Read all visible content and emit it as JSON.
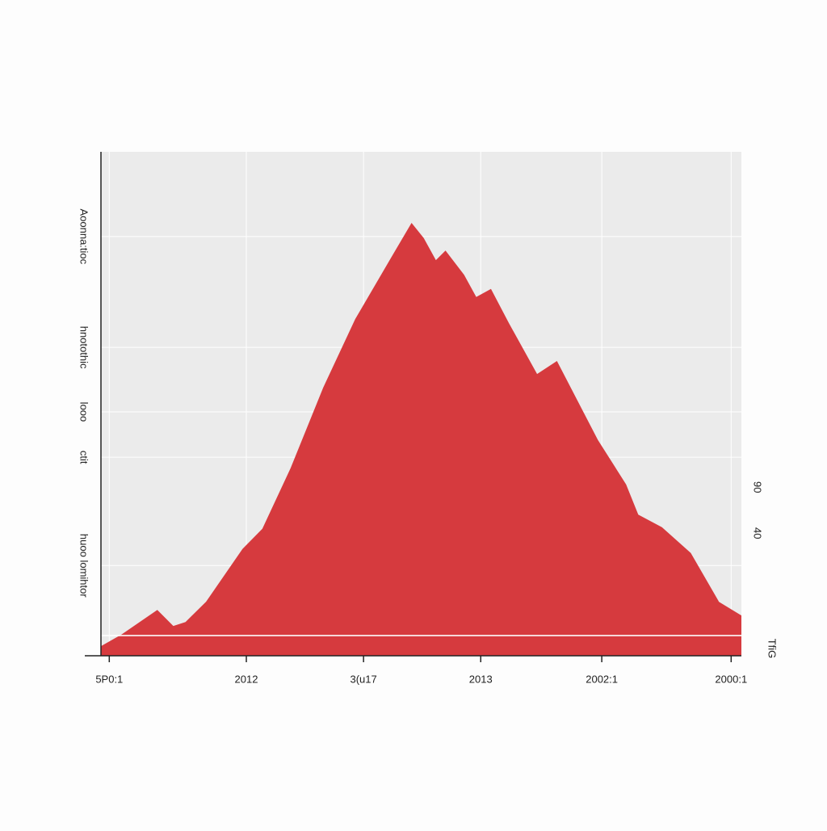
{
  "chart_data": {
    "type": "area",
    "x": [
      0,
      3.2,
      8.8,
      11.3,
      13.2,
      16.4,
      22.1,
      25.2,
      29.6,
      34.7,
      39.7,
      45.4,
      48.5,
      50.4,
      52.3,
      53.8,
      56.7,
      58.6,
      60.9,
      63.7,
      68.1,
      71.2,
      77.6,
      82.0,
      83.9,
      87.6,
      92.1,
      96.5,
      100
    ],
    "series": [
      {
        "color": "#d63a3e",
        "values": [
          1.9,
          4.2,
          9.1,
          5.9,
          6.7,
          10.7,
          21.2,
          25.2,
          37.2,
          53.2,
          66.8,
          79.2,
          85.9,
          82.9,
          78.5,
          80.4,
          75.6,
          71.2,
          72.8,
          66.0,
          55.9,
          58.5,
          42.8,
          34.0,
          28.0,
          25.5,
          20.4,
          10.7,
          8.0
        ]
      }
    ],
    "xlim": [
      0,
      100
    ],
    "xticks": [
      {
        "value": 1.3,
        "label": "5P0:1"
      },
      {
        "value": 22.7,
        "label": "2012"
      },
      {
        "value": 41.0,
        "label": "3(u17"
      },
      {
        "value": 59.3,
        "label": "2013"
      },
      {
        "value": 78.2,
        "label": "2002:1"
      },
      {
        "value": 98.4,
        "label": "2000:1"
      }
    ],
    "ylim": [
      0,
      100
    ],
    "yticks": [
      {
        "value": 83.2,
        "label": "Aoonna:tioc"
      },
      {
        "value": 61.2,
        "label": "hnotothic"
      },
      {
        "value": 48.4,
        "label": "looo"
      },
      {
        "value": 39.4,
        "label": "ctit"
      },
      {
        "value": 17.9,
        "label": "huoo lomihtor"
      }
    ],
    "y2lim": [
      -93,
      454
    ],
    "y2ticks": [
      90,
      40
    ],
    "y2label": "TfiG",
    "grid": true
  }
}
